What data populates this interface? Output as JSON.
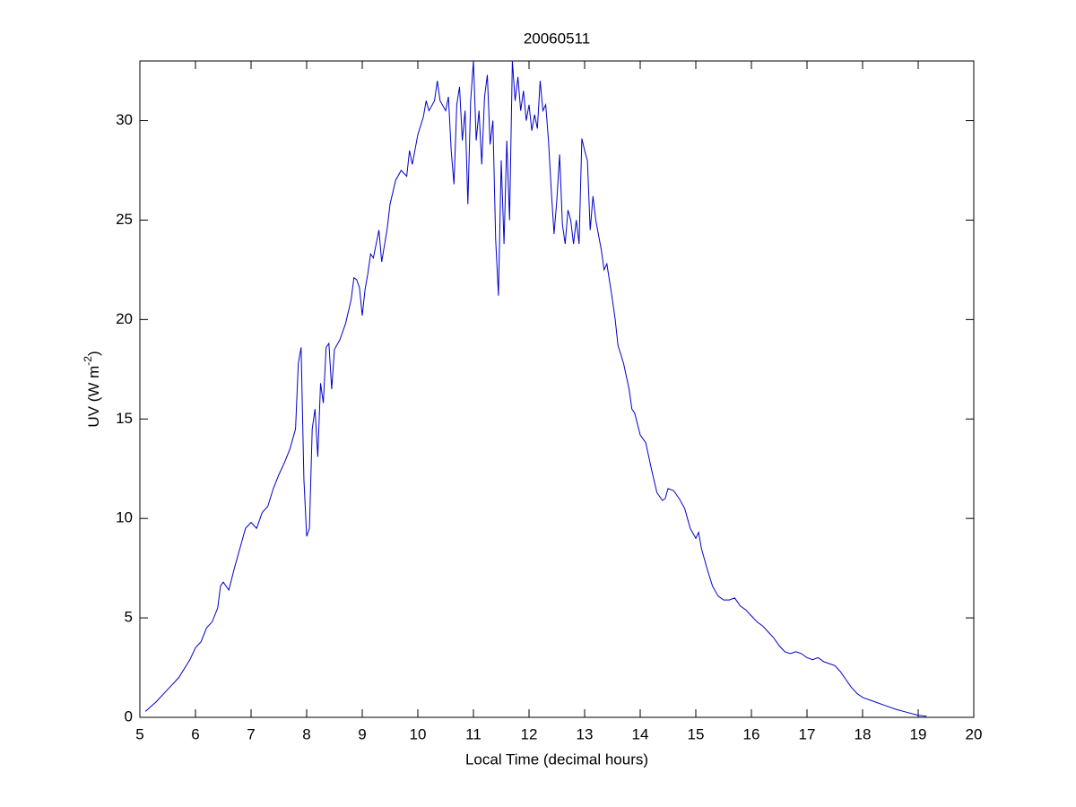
{
  "chart_data": {
    "type": "line",
    "title": "20060511",
    "xlabel": "Local Time (decimal hours)",
    "ylabel": [
      "UV (W m",
      "-2",
      ")"
    ],
    "color": "#0000cc",
    "xlim": [
      5,
      20
    ],
    "ylim": [
      0,
      33
    ],
    "xticks": [
      5,
      6,
      7,
      8,
      9,
      10,
      11,
      12,
      13,
      14,
      15,
      16,
      17,
      18,
      19,
      20
    ],
    "yticks": [
      0,
      5,
      10,
      15,
      20,
      25,
      30
    ],
    "grid": false,
    "x": [
      5.1,
      5.3,
      5.5,
      5.7,
      5.9,
      6.0,
      6.1,
      6.2,
      6.3,
      6.4,
      6.45,
      6.5,
      6.6,
      6.7,
      6.8,
      6.9,
      7.0,
      7.1,
      7.2,
      7.3,
      7.4,
      7.5,
      7.6,
      7.7,
      7.8,
      7.85,
      7.9,
      7.95,
      8.0,
      8.05,
      8.1,
      8.15,
      8.2,
      8.25,
      8.3,
      8.35,
      8.4,
      8.45,
      8.5,
      8.6,
      8.7,
      8.8,
      8.85,
      8.9,
      8.95,
      9.0,
      9.05,
      9.1,
      9.15,
      9.2,
      9.3,
      9.35,
      9.45,
      9.5,
      9.6,
      9.7,
      9.8,
      9.85,
      9.9,
      10.0,
      10.1,
      10.15,
      10.2,
      10.3,
      10.35,
      10.4,
      10.5,
      10.55,
      10.6,
      10.65,
      10.7,
      10.75,
      10.8,
      10.85,
      10.9,
      10.95,
      11.0,
      11.05,
      11.1,
      11.15,
      11.2,
      11.25,
      11.3,
      11.35,
      11.4,
      11.45,
      11.5,
      11.55,
      11.6,
      11.65,
      11.7,
      11.75,
      11.8,
      11.85,
      11.9,
      11.95,
      12.0,
      12.05,
      12.1,
      12.15,
      12.2,
      12.25,
      12.3,
      12.35,
      12.4,
      12.45,
      12.5,
      12.55,
      12.6,
      12.65,
      12.7,
      12.75,
      12.8,
      12.85,
      12.9,
      12.95,
      13.0,
      13.05,
      13.1,
      13.15,
      13.2,
      13.3,
      13.35,
      13.4,
      13.5,
      13.55,
      13.6,
      13.7,
      13.8,
      13.85,
      13.9,
      14.0,
      14.1,
      14.2,
      14.3,
      14.4,
      14.45,
      14.5,
      14.6,
      14.7,
      14.8,
      14.9,
      15.0,
      15.05,
      15.1,
      15.2,
      15.3,
      15.4,
      15.5,
      15.6,
      15.7,
      15.8,
      15.9,
      16.0,
      16.1,
      16.2,
      16.3,
      16.4,
      16.5,
      16.6,
      16.7,
      16.8,
      16.9,
      17.0,
      17.1,
      17.2,
      17.3,
      17.4,
      17.5,
      17.6,
      17.7,
      17.8,
      17.9,
      18.0,
      18.2,
      18.4,
      18.6,
      18.8,
      19.0,
      19.15
    ],
    "values": [
      0.3,
      0.8,
      1.4,
      2.0,
      2.9,
      3.5,
      3.8,
      4.5,
      4.8,
      5.5,
      6.6,
      6.8,
      6.4,
      7.5,
      8.5,
      9.5,
      9.8,
      9.5,
      10.3,
      10.6,
      11.5,
      12.2,
      12.8,
      13.5,
      14.5,
      17.8,
      18.6,
      12.0,
      9.1,
      9.5,
      14.5,
      15.5,
      13.1,
      16.8,
      15.8,
      18.6,
      18.8,
      16.5,
      18.5,
      19.0,
      19.8,
      21.0,
      22.1,
      22.0,
      21.6,
      20.2,
      21.5,
      22.3,
      23.3,
      23.1,
      24.5,
      22.9,
      24.6,
      25.8,
      27.0,
      27.5,
      27.2,
      28.5,
      27.8,
      29.3,
      30.2,
      31.0,
      30.5,
      31.0,
      32.0,
      31.0,
      30.5,
      31.2,
      28.5,
      26.8,
      30.8,
      31.7,
      29.0,
      30.5,
      25.8,
      31.0,
      33.0,
      29.0,
      30.5,
      27.8,
      31.2,
      32.3,
      28.8,
      30.0,
      24.0,
      21.2,
      28.0,
      23.8,
      29.0,
      25.0,
      33.0,
      31.0,
      32.2,
      30.5,
      31.5,
      30.0,
      30.8,
      29.5,
      30.3,
      29.6,
      32.0,
      30.5,
      30.8,
      29.0,
      26.5,
      24.3,
      26.0,
      28.3,
      24.8,
      23.8,
      25.5,
      25.0,
      23.8,
      25.0,
      23.8,
      29.1,
      28.5,
      28.0,
      24.5,
      26.2,
      25.0,
      23.5,
      22.5,
      22.8,
      21.0,
      20.0,
      18.7,
      17.8,
      16.5,
      15.5,
      15.3,
      14.2,
      13.8,
      12.5,
      11.3,
      10.9,
      11.0,
      11.5,
      11.4,
      11.0,
      10.5,
      9.5,
      9.0,
      9.3,
      8.5,
      7.5,
      6.6,
      6.1,
      5.9,
      5.9,
      6.0,
      5.6,
      5.4,
      5.1,
      4.8,
      4.6,
      4.3,
      4.0,
      3.6,
      3.3,
      3.2,
      3.3,
      3.2,
      3.0,
      2.9,
      3.0,
      2.8,
      2.7,
      2.6,
      2.3,
      1.9,
      1.5,
      1.2,
      1.0,
      0.8,
      0.6,
      0.4,
      0.25,
      0.1,
      0.05
    ]
  }
}
